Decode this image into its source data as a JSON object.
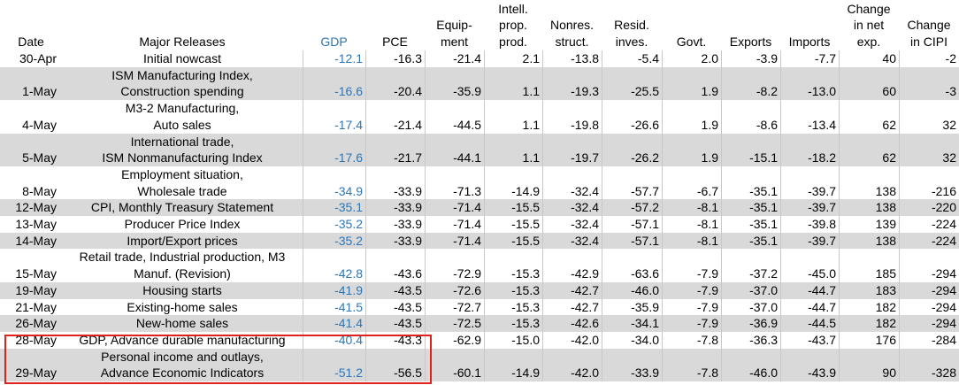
{
  "table": {
    "header": [
      [
        "Date"
      ],
      [
        "Major Releases"
      ],
      [
        "GDP"
      ],
      [
        "PCE"
      ],
      [
        "Equip-",
        "ment"
      ],
      [
        "Intell.",
        "prop.",
        "prod."
      ],
      [
        "Nonres.",
        "struct."
      ],
      [
        "Resid.",
        "inves."
      ],
      [
        "Govt."
      ],
      [
        "Exports"
      ],
      [
        "Imports"
      ],
      [
        "Change",
        "in net",
        "exp."
      ],
      [
        "Change",
        "in CIPI"
      ]
    ],
    "rows": [
      {
        "date": "30-Apr",
        "release": [
          "Initial nowcast"
        ],
        "values": [
          "-12.1",
          "-16.3",
          "-21.4",
          "2.1",
          "-13.8",
          "-5.4",
          "2.0",
          "-3.9",
          "-7.7",
          "40",
          "-2"
        ]
      },
      {
        "date": "1-May",
        "release": [
          "ISM Manufacturing Index,",
          "Construction spending"
        ],
        "values": [
          "-16.6",
          "-20.4",
          "-35.9",
          "1.1",
          "-19.3",
          "-25.5",
          "1.9",
          "-8.2",
          "-13.0",
          "60",
          "-3"
        ]
      },
      {
        "date": "4-May",
        "release": [
          "M3-2 Manufacturing,",
          "Auto sales"
        ],
        "values": [
          "-17.4",
          "-21.4",
          "-44.5",
          "1.1",
          "-19.8",
          "-26.6",
          "1.9",
          "-8.6",
          "-13.4",
          "62",
          "32"
        ]
      },
      {
        "date": "5-May",
        "release": [
          "International trade,",
          "ISM Nonmanufacturing Index"
        ],
        "values": [
          "-17.6",
          "-21.7",
          "-44.1",
          "1.1",
          "-19.7",
          "-26.2",
          "1.9",
          "-15.1",
          "-18.2",
          "62",
          "32"
        ]
      },
      {
        "date": "8-May",
        "release": [
          "Employment situation,",
          "Wholesale trade"
        ],
        "values": [
          "-34.9",
          "-33.9",
          "-71.3",
          "-14.9",
          "-32.4",
          "-57.7",
          "-6.7",
          "-35.1",
          "-39.7",
          "138",
          "-216"
        ]
      },
      {
        "date": "12-May",
        "release": [
          "CPI, Monthly Treasury Statement"
        ],
        "values": [
          "-35.1",
          "-33.9",
          "-71.4",
          "-15.5",
          "-32.4",
          "-57.2",
          "-8.1",
          "-35.1",
          "-39.7",
          "138",
          "-220"
        ]
      },
      {
        "date": "13-May",
        "release": [
          "Producer Price Index"
        ],
        "values": [
          "-35.2",
          "-33.9",
          "-71.4",
          "-15.5",
          "-32.4",
          "-57.1",
          "-8.1",
          "-35.1",
          "-39.8",
          "139",
          "-224"
        ]
      },
      {
        "date": "14-May",
        "release": [
          "Import/Export prices"
        ],
        "values": [
          "-35.2",
          "-33.9",
          "-71.4",
          "-15.5",
          "-32.4",
          "-57.1",
          "-8.1",
          "-35.1",
          "-39.7",
          "138",
          "-224"
        ]
      },
      {
        "date": "15-May",
        "release": [
          "Retail trade, Industrial production, M3",
          "Manuf. (Revision)"
        ],
        "values": [
          "-42.8",
          "-43.6",
          "-72.9",
          "-15.3",
          "-42.9",
          "-63.6",
          "-7.9",
          "-37.2",
          "-45.0",
          "185",
          "-294"
        ]
      },
      {
        "date": "19-May",
        "release": [
          "Housing starts"
        ],
        "values": [
          "-41.9",
          "-43.5",
          "-72.6",
          "-15.3",
          "-42.7",
          "-46.0",
          "-7.9",
          "-37.0",
          "-44.7",
          "183",
          "-294"
        ]
      },
      {
        "date": "21-May",
        "release": [
          "Existing-home sales"
        ],
        "values": [
          "-41.5",
          "-43.5",
          "-72.7",
          "-15.3",
          "-42.7",
          "-35.9",
          "-7.9",
          "-37.0",
          "-44.7",
          "182",
          "-294"
        ]
      },
      {
        "date": "26-May",
        "release": [
          "New-home sales"
        ],
        "values": [
          "-41.4",
          "-43.5",
          "-72.5",
          "-15.3",
          "-42.6",
          "-34.1",
          "-7.9",
          "-36.9",
          "-44.5",
          "182",
          "-294"
        ]
      },
      {
        "date": "28-May",
        "release": [
          "GDP, Advance durable manufacturing"
        ],
        "values": [
          "-40.4",
          "-43.3",
          "-62.9",
          "-15.0",
          "-42.0",
          "-34.0",
          "-7.8",
          "-36.3",
          "-43.7",
          "176",
          "-284"
        ]
      },
      {
        "date": "29-May",
        "release": [
          "Personal income and outlays,",
          "Advance Economic Indicators"
        ],
        "values": [
          "-51.2",
          "-56.5",
          "-60.1",
          "-14.9",
          "-42.0",
          "-33.9",
          "-7.8",
          "-46.0",
          "-43.9",
          "90",
          "-328"
        ]
      }
    ]
  }
}
